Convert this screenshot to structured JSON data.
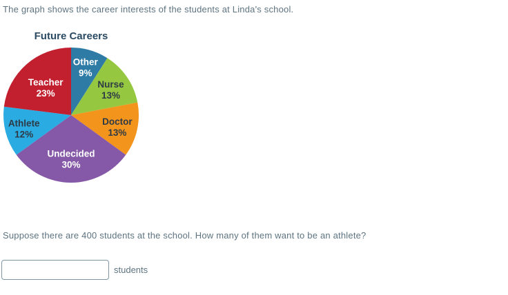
{
  "intro": "The graph shows the career interests of the students at Linda's school.",
  "chart_data": {
    "type": "pie",
    "title": "Future Careers",
    "start_angle": 0,
    "categories": [
      "Other",
      "Nurse",
      "Doctor",
      "Undecided",
      "Athlete",
      "Teacher"
    ],
    "values": [
      9,
      13,
      13,
      30,
      12,
      23
    ],
    "slices": [
      {
        "label": "Other",
        "pct": 9,
        "color": "#2e7ba6",
        "text_color": "#ffffff",
        "label_r": 0.76
      },
      {
        "label": "Nurse",
        "pct": 13,
        "color": "#95c840",
        "text_color": "#2e3a45",
        "label_r": 0.71
      },
      {
        "label": "Doctor",
        "pct": 13,
        "color": "#f3941c",
        "text_color": "#2e3a45",
        "label_r": 0.7
      },
      {
        "label": "Undecided",
        "pct": 30,
        "color": "#8659a8",
        "text_color": "#ffffff",
        "label_r": 0.63
      },
      {
        "label": "Athlete",
        "pct": 12,
        "color": "#2aabe2",
        "text_color": "#2e3a45",
        "label_r": 0.72
      },
      {
        "label": "Teacher",
        "pct": 23,
        "color": "#c2202f",
        "text_color": "#ffffff",
        "label_r": 0.57
      }
    ]
  },
  "question": "Suppose there are 400 students at the school. How many of them want to be an athlete?",
  "answer": {
    "value": "",
    "unit_label": "students"
  }
}
